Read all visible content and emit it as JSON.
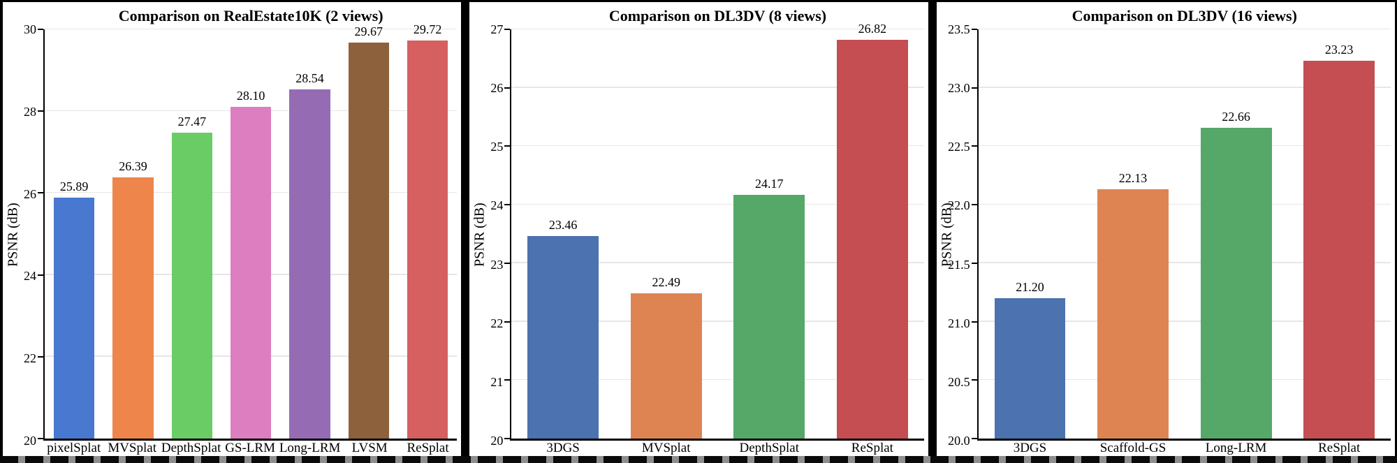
{
  "figure": {
    "background": "#ffffff",
    "border_color": "#000000",
    "divider_color": "#000000",
    "gridline_color": "#e6e6e6",
    "axis_color": "#000000",
    "text_color": "#000000"
  },
  "chart_data": [
    {
      "type": "bar",
      "title": "Comparison on RealEstate10K (2 views)",
      "xlabel": "",
      "ylabel": "PSNR (dB)",
      "ylim": [
        20,
        30
      ],
      "yticks": [
        20,
        22,
        24,
        26,
        28,
        30
      ],
      "ytick_labels": [
        "20",
        "22",
        "24",
        "26",
        "28",
        "30"
      ],
      "grid": true,
      "legend": "none",
      "categories": [
        "pixelSplat",
        "MVSplat",
        "DepthSplat",
        "GS-LRM",
        "Long-LRM",
        "LVSM",
        "ReSplat"
      ],
      "values": [
        25.89,
        26.39,
        27.47,
        28.1,
        28.54,
        29.67,
        29.72
      ],
      "value_labels": [
        "25.89",
        "26.39",
        "27.47",
        "28.10",
        "28.54",
        "29.67",
        "29.72"
      ],
      "bar_colors": [
        "#4878d0",
        "#ee854a",
        "#6acc64",
        "#dc7ec0",
        "#956cb4",
        "#8c613c",
        "#d65f5f"
      ]
    },
    {
      "type": "bar",
      "title": "Comparison on DL3DV (8 views)",
      "xlabel": "",
      "ylabel": "PSNR (dB)",
      "ylim": [
        20,
        27
      ],
      "yticks": [
        20,
        21,
        22,
        23,
        24,
        25,
        26,
        27
      ],
      "ytick_labels": [
        "20",
        "21",
        "22",
        "23",
        "24",
        "25",
        "26",
        "27"
      ],
      "grid": true,
      "legend": "none",
      "categories": [
        "3DGS",
        "MVSplat",
        "DepthSplat",
        "ReSplat"
      ],
      "values": [
        23.46,
        22.49,
        24.17,
        26.82
      ],
      "value_labels": [
        "23.46",
        "22.49",
        "24.17",
        "26.82"
      ],
      "bar_colors": [
        "#4c72b0",
        "#dd8452",
        "#55a868",
        "#c44e52"
      ]
    },
    {
      "type": "bar",
      "title": "Comparison on DL3DV (16 views)",
      "xlabel": "",
      "ylabel": "PSNR (dB)",
      "ylim": [
        20,
        23.5
      ],
      "yticks": [
        20,
        20.5,
        21,
        21.5,
        22,
        22.5,
        23,
        23.5
      ],
      "ytick_labels": [
        "20.0",
        "20.5",
        "21.0",
        "21.5",
        "22.0",
        "22.5",
        "23.0",
        "23.5"
      ],
      "grid": true,
      "legend": "none",
      "categories": [
        "3DGS",
        "Scaffold-GS",
        "Long-LRM",
        "ReSplat"
      ],
      "values": [
        21.2,
        22.13,
        22.66,
        23.23
      ],
      "value_labels": [
        "21.20",
        "22.13",
        "22.66",
        "23.23"
      ],
      "bar_colors": [
        "#4c72b0",
        "#dd8452",
        "#55a868",
        "#c44e52"
      ]
    }
  ]
}
